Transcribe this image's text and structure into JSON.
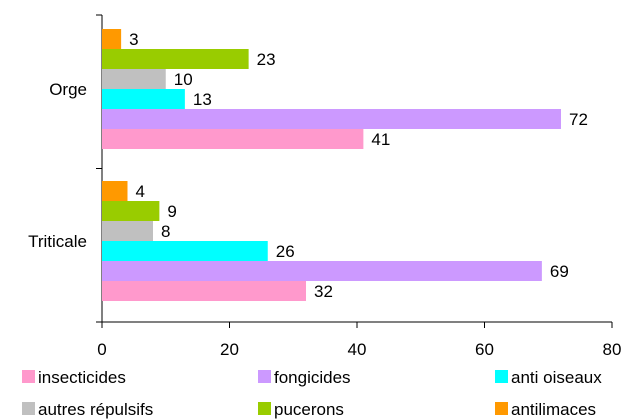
{
  "chart_data": {
    "type": "bar",
    "orientation": "horizontal",
    "categories": [
      "Orge",
      "Triticale"
    ],
    "series": [
      {
        "name": "insecticides",
        "color": "#ff99cc",
        "values": [
          41,
          32
        ]
      },
      {
        "name": "fongicides",
        "color": "#cc99ff",
        "values": [
          72,
          69
        ]
      },
      {
        "name": "anti oiseaux",
        "color": "#00ffff",
        "values": [
          13,
          26
        ]
      },
      {
        "name": "autres répulsifs",
        "color": "#c0c0c0",
        "values": [
          10,
          8
        ]
      },
      {
        "name": "pucerons",
        "color": "#99cc00",
        "values": [
          23,
          9
        ]
      },
      {
        "name": "antilimaces",
        "color": "#ff9900",
        "values": [
          3,
          4
        ]
      }
    ],
    "xlim": [
      0,
      80
    ],
    "xticks": [
      "0",
      "20",
      "40",
      "60",
      "80"
    ],
    "grid": false,
    "legend_position": "bottom",
    "title": "",
    "xlabel": "",
    "ylabel": ""
  }
}
